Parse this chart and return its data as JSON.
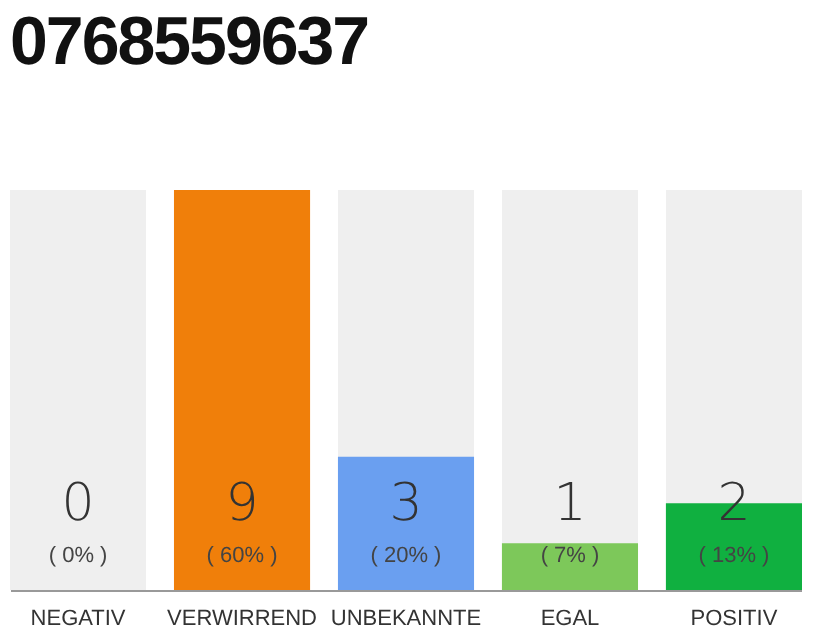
{
  "chart_data": {
    "type": "bar",
    "title": "0768559637",
    "categories": [
      "NEGATIV",
      "VERWIRREND",
      "UNBEKANNTE",
      "EGAL",
      "POSITIV"
    ],
    "values": [
      0,
      60,
      20,
      7,
      13
    ],
    "colors": [
      "#e0301e",
      "#f07f0a",
      "#6a9ff0",
      "#7dc85a",
      "#10b040"
    ],
    "value_labels": [
      "( 0% )",
      "( 60% )",
      "( 20% )",
      "( 7% )",
      "( 13% )"
    ],
    "annotations": [
      "0",
      "9",
      "3",
      "1",
      "2"
    ],
    "grid": false
  }
}
